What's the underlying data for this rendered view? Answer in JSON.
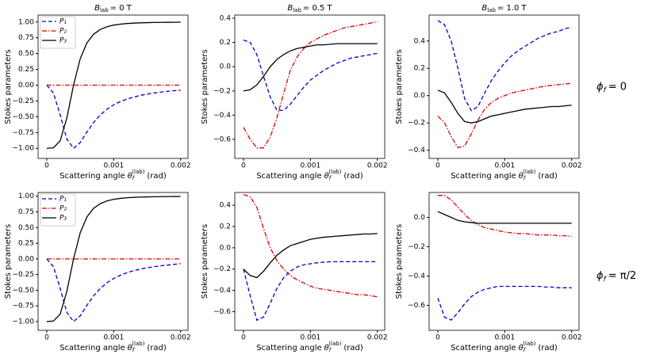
{
  "chart_data": [
    {
      "type": "line",
      "title": {
        "symbol": "B",
        "subscript": "lab",
        "text": "= 0 T"
      },
      "ylabel": "Stokes parameters",
      "xlabel": {
        "text": "Scattering angle",
        "symbol": "θ",
        "sub": "f",
        "sup": "(lab)",
        "unit": "(rad)"
      },
      "x": [
        0,
        0.0001,
        0.0002,
        0.0003,
        0.0004,
        0.0005,
        0.0006,
        0.0007,
        0.0008,
        0.0009,
        0.001,
        0.0011,
        0.0012,
        0.0013,
        0.0014,
        0.0015,
        0.0016,
        0.0017,
        0.0018,
        0.0019,
        0.002
      ],
      "xlim": [
        -0.00013,
        0.00211
      ],
      "xticks": [
        0,
        0.001,
        0.002
      ],
      "ylim": [
        -1.16,
        1.11
      ],
      "yticks": [
        {
          "value": -1,
          "label": "−1.00"
        },
        {
          "value": -0.75,
          "label": "−0.75"
        },
        {
          "value": -0.5,
          "label": "−0.50"
        },
        {
          "value": -0.25,
          "label": "−0.25"
        },
        {
          "value": 0,
          "label": "0.00"
        },
        {
          "value": 0.25,
          "label": "0.25"
        },
        {
          "value": 0.5,
          "label": "0.50"
        },
        {
          "value": 0.75,
          "label": "0.75"
        },
        {
          "value": 1,
          "label": "1.00"
        }
      ],
      "legend": "upper left",
      "series": [
        {
          "name": "P₁",
          "color": "#0000cc",
          "style": "dashed",
          "values": [
            0,
            -0.125,
            -0.471,
            -0.855,
            -1,
            -0.908,
            -0.742,
            -0.59,
            -0.471,
            -0.38,
            -0.312,
            -0.26,
            -0.22,
            -0.188,
            -0.162,
            -0.142,
            -0.125,
            -0.11,
            -0.099,
            -0.088,
            -0.08
          ]
        },
        {
          "name": "P₂",
          "color": "#dd0000",
          "style": "dashdot",
          "values": [
            0,
            0,
            0,
            0,
            0,
            0,
            0,
            0,
            0,
            0,
            0,
            0,
            0,
            0,
            0,
            0,
            0,
            0,
            0,
            0,
            0
          ]
        },
        {
          "name": "P₃",
          "color": "#000000",
          "style": "solid",
          "values": [
            -1,
            -0.992,
            -0.882,
            -0.519,
            0,
            0.419,
            0.67,
            0.807,
            0.882,
            0.925,
            0.951,
            0.966,
            0.976,
            0.982,
            0.987,
            0.99,
            0.992,
            0.994,
            0.995,
            0.996,
            0.997
          ]
        }
      ]
    },
    {
      "type": "line",
      "title": {
        "symbol": "B",
        "subscript": "lab",
        "text": "= 0.5 T"
      },
      "ylabel": "Stokes parameters",
      "xlabel": {
        "text": "Scattering angle",
        "symbol": "θ",
        "sub": "f",
        "sup": "(lab)",
        "unit": "(rad)"
      },
      "x": [
        0,
        0.0001,
        0.0002,
        0.0003,
        0.0004,
        0.0005,
        0.0006,
        0.0007,
        0.0008,
        0.0009,
        0.001,
        0.0011,
        0.0012,
        0.0013,
        0.0014,
        0.0015,
        0.0016,
        0.0017,
        0.0018,
        0.0019,
        0.002
      ],
      "xlim": [
        -0.00013,
        0.00211
      ],
      "xticks": [
        0,
        0.001,
        0.002
      ],
      "ylim": [
        -0.757,
        0.426
      ],
      "yticks": [
        {
          "value": -0.6,
          "label": "−0.6"
        },
        {
          "value": -0.4,
          "label": "−0.4"
        },
        {
          "value": -0.2,
          "label": "−0.2"
        },
        {
          "value": 0,
          "label": "0.0"
        },
        0.2,
        0.4
      ],
      "series": [
        {
          "name": "P₁",
          "color": "#0000cc",
          "style": "dashed",
          "values": [
            0.22,
            0.2,
            0.1,
            -0.08,
            -0.25,
            -0.36,
            -0.36,
            -0.31,
            -0.24,
            -0.17,
            -0.11,
            -0.07,
            -0.03,
            0,
            0.03,
            0.05,
            0.07,
            0.08,
            0.09,
            0.1,
            0.11
          ]
        },
        {
          "name": "P₂",
          "color": "#dd0000",
          "style": "dashdot",
          "values": [
            -0.5,
            -0.6,
            -0.67,
            -0.67,
            -0.58,
            -0.42,
            -0.22,
            -0.03,
            0.08,
            0.15,
            0.2,
            0.23,
            0.26,
            0.28,
            0.3,
            0.32,
            0.33,
            0.34,
            0.35,
            0.36,
            0.37
          ]
        },
        {
          "name": "P₃",
          "color": "#000000",
          "style": "solid",
          "values": [
            -0.2,
            -0.19,
            -0.15,
            -0.08,
            0,
            0.06,
            0.1,
            0.13,
            0.15,
            0.16,
            0.17,
            0.18,
            0.18,
            0.185,
            0.19,
            0.19,
            0.19,
            0.19,
            0.19,
            0.19,
            0.19
          ]
        }
      ]
    },
    {
      "type": "line",
      "title": {
        "symbol": "B",
        "subscript": "lab",
        "text": "= 1.0 T"
      },
      "row_label": {
        "symbol": "ϕ",
        "subscript": "f",
        "text": "= 0"
      },
      "ylabel": "Stokes parameters",
      "xlabel": {
        "text": "Scattering angle",
        "symbol": "θ",
        "sub": "f",
        "sup": "(lab)",
        "unit": "(rad)"
      },
      "x": [
        0,
        0.0001,
        0.0002,
        0.0003,
        0.0004,
        0.0005,
        0.0006,
        0.0007,
        0.0008,
        0.0009,
        0.001,
        0.0011,
        0.0012,
        0.0013,
        0.0014,
        0.0015,
        0.0016,
        0.0017,
        0.0018,
        0.0019,
        0.002
      ],
      "xlim": [
        -0.00013,
        0.00211
      ],
      "xticks": [
        0,
        0.001,
        0.002
      ],
      "ylim": [
        -0.46,
        0.59
      ],
      "yticks": [
        {
          "value": -0.4,
          "label": "−0.4"
        },
        {
          "value": -0.2,
          "label": "−0.2"
        },
        {
          "value": 0,
          "label": "0.0"
        },
        0.2,
        0.4
      ],
      "series": [
        {
          "name": "P₁",
          "color": "#0000cc",
          "style": "dashed",
          "values": [
            0.55,
            0.52,
            0.4,
            0.2,
            -0.02,
            -0.11,
            -0.08,
            0.02,
            0.11,
            0.18,
            0.24,
            0.29,
            0.33,
            0.36,
            0.39,
            0.42,
            0.44,
            0.46,
            0.47,
            0.49,
            0.5
          ]
        },
        {
          "name": "P₂",
          "color": "#dd0000",
          "style": "dashdot",
          "values": [
            -0.15,
            -0.2,
            -0.3,
            -0.38,
            -0.37,
            -0.28,
            -0.18,
            -0.1,
            -0.05,
            -0.02,
            0,
            0.02,
            0.03,
            0.04,
            0.05,
            0.06,
            0.07,
            0.075,
            0.08,
            0.085,
            0.09
          ]
        },
        {
          "name": "P₃",
          "color": "#000000",
          "style": "solid",
          "values": [
            0.04,
            0.02,
            -0.05,
            -0.13,
            -0.19,
            -0.2,
            -0.19,
            -0.17,
            -0.15,
            -0.14,
            -0.13,
            -0.12,
            -0.11,
            -0.1,
            -0.095,
            -0.09,
            -0.085,
            -0.08,
            -0.08,
            -0.075,
            -0.07
          ]
        }
      ]
    },
    {
      "type": "line",
      "ylabel": "Stokes parameters",
      "xlabel": {
        "text": "Scattering angle",
        "symbol": "θ",
        "sub": "f",
        "sup": "(lab)",
        "unit": "(rad)"
      },
      "x": [
        0,
        0.0001,
        0.0002,
        0.0003,
        0.0004,
        0.0005,
        0.0006,
        0.0007,
        0.0008,
        0.0009,
        0.001,
        0.0011,
        0.0012,
        0.0013,
        0.0014,
        0.0015,
        0.0016,
        0.0017,
        0.0018,
        0.0019,
        0.002
      ],
      "xlim": [
        -0.00013,
        0.00211
      ],
      "xticks": [
        0,
        0.001,
        0.002
      ],
      "ylim": [
        -1.14,
        1.06
      ],
      "yticks": [
        {
          "value": -1,
          "label": "−1.00"
        },
        {
          "value": -0.75,
          "label": "−0.75"
        },
        {
          "value": -0.5,
          "label": "−0.50"
        },
        {
          "value": -0.25,
          "label": "−0.25"
        },
        {
          "value": 0,
          "label": "0.00"
        },
        {
          "value": 0.25,
          "label": "0.25"
        },
        {
          "value": 0.5,
          "label": "0.50"
        },
        {
          "value": 0.75,
          "label": "0.75"
        },
        {
          "value": 1,
          "label": "1.00"
        }
      ],
      "legend": "upper left",
      "series": [
        {
          "name": "P₁",
          "color": "#0000cc",
          "style": "dashed",
          "values": [
            0,
            -0.125,
            -0.471,
            -0.855,
            -1,
            -0.908,
            -0.742,
            -0.59,
            -0.471,
            -0.38,
            -0.312,
            -0.26,
            -0.22,
            -0.188,
            -0.162,
            -0.142,
            -0.125,
            -0.11,
            -0.099,
            -0.088,
            -0.075
          ]
        },
        {
          "name": "P₂",
          "color": "#dd0000",
          "style": "dashdot",
          "values": [
            0,
            0,
            0,
            0,
            0,
            0,
            0,
            0,
            0,
            0,
            0,
            0,
            0,
            0,
            0,
            0,
            0,
            0,
            0,
            0,
            0
          ]
        },
        {
          "name": "P₃",
          "color": "#000000",
          "style": "solid",
          "values": [
            -1,
            -0.992,
            -0.882,
            -0.519,
            0,
            0.419,
            0.67,
            0.807,
            0.882,
            0.925,
            0.951,
            0.966,
            0.976,
            0.982,
            0.987,
            0.99,
            0.992,
            0.994,
            0.995,
            0.996,
            0.997
          ]
        }
      ]
    },
    {
      "type": "line",
      "ylabel": "Stokes parameters",
      "xlabel": {
        "text": "Scattering angle",
        "symbol": "θ",
        "sub": "f",
        "sup": "(lab)",
        "unit": "(rad)"
      },
      "x": [
        0,
        0.0001,
        0.0002,
        0.0003,
        0.0004,
        0.0005,
        0.0006,
        0.0007,
        0.0008,
        0.0009,
        0.001,
        0.0011,
        0.0012,
        0.0013,
        0.0014,
        0.0015,
        0.0016,
        0.0017,
        0.0018,
        0.0019,
        0.002
      ],
      "xlim": [
        -0.00013,
        0.00211
      ],
      "xticks": [
        0,
        0.001,
        0.002
      ],
      "ylim": [
        -0.775,
        0.52
      ],
      "yticks": [
        {
          "value": -0.6,
          "label": "−0.6"
        },
        {
          "value": -0.4,
          "label": "−0.4"
        },
        {
          "value": -0.2,
          "label": "−0.2"
        },
        {
          "value": 0,
          "label": "0.0"
        },
        0.2,
        0.4
      ],
      "series": [
        {
          "name": "P₁",
          "color": "#0000cc",
          "style": "dashed",
          "values": [
            -0.2,
            -0.45,
            -0.68,
            -0.65,
            -0.52,
            -0.38,
            -0.28,
            -0.22,
            -0.18,
            -0.16,
            -0.15,
            -0.14,
            -0.135,
            -0.13,
            -0.13,
            -0.13,
            -0.13,
            -0.13,
            -0.13,
            -0.13,
            -0.13
          ]
        },
        {
          "name": "P₂",
          "color": "#dd0000",
          "style": "dashdot",
          "values": [
            0.5,
            0.48,
            0.38,
            0.18,
            0,
            -0.12,
            -0.2,
            -0.26,
            -0.3,
            -0.33,
            -0.36,
            -0.38,
            -0.39,
            -0.4,
            -0.41,
            -0.42,
            -0.43,
            -0.44,
            -0.44,
            -0.45,
            -0.46
          ]
        },
        {
          "name": "P₃",
          "color": "#000000",
          "style": "solid",
          "values": [
            -0.2,
            -0.26,
            -0.28,
            -0.22,
            -0.14,
            -0.07,
            -0.02,
            0.02,
            0.04,
            0.06,
            0.08,
            0.09,
            0.1,
            0.105,
            0.11,
            0.115,
            0.12,
            0.125,
            0.13,
            0.13,
            0.135
          ]
        }
      ]
    },
    {
      "type": "line",
      "row_label": {
        "symbol": "ϕ",
        "subscript": "f",
        "text": "= π/2"
      },
      "ylabel": "Stokes parameters",
      "xlabel": {
        "text": "Scattering angle",
        "symbol": "θ",
        "sub": "f",
        "sup": "(lab)",
        "unit": "(rad)"
      },
      "x": [
        0,
        0.0001,
        0.0002,
        0.0003,
        0.0004,
        0.0005,
        0.0006,
        0.0007,
        0.0008,
        0.0009,
        0.001,
        0.0011,
        0.0012,
        0.0013,
        0.0014,
        0.0015,
        0.0016,
        0.0017,
        0.0018,
        0.0019,
        0.002
      ],
      "xlim": [
        -0.00013,
        0.00211
      ],
      "xticks": [
        0,
        0.001,
        0.002
      ],
      "ylim": [
        -0.77,
        0.17
      ],
      "yticks": [
        {
          "value": -0.6,
          "label": "−0.6"
        },
        {
          "value": -0.4,
          "label": "−0.4"
        },
        {
          "value": -0.2,
          "label": "−0.2"
        },
        {
          "value": 0,
          "label": "0.0"
        }
      ],
      "series": [
        {
          "name": "P₁",
          "color": "#0000cc",
          "style": "dashed",
          "values": [
            -0.55,
            -0.68,
            -0.7,
            -0.65,
            -0.59,
            -0.54,
            -0.51,
            -0.49,
            -0.48,
            -0.47,
            -0.47,
            -0.47,
            -0.47,
            -0.47,
            -0.47,
            -0.47,
            -0.475,
            -0.475,
            -0.48,
            -0.48,
            -0.48
          ]
        },
        {
          "name": "P₂",
          "color": "#dd0000",
          "style": "dashdot",
          "values": [
            0.15,
            0.15,
            0.12,
            0.07,
            0.02,
            -0.02,
            -0.05,
            -0.07,
            -0.08,
            -0.09,
            -0.1,
            -0.105,
            -0.11,
            -0.11,
            -0.115,
            -0.12,
            -0.12,
            -0.12,
            -0.125,
            -0.125,
            -0.13
          ]
        },
        {
          "name": "P₃",
          "color": "#000000",
          "style": "solid",
          "values": [
            0.04,
            0.02,
            0,
            -0.02,
            -0.03,
            -0.035,
            -0.04,
            -0.04,
            -0.04,
            -0.04,
            -0.04,
            -0.04,
            -0.04,
            -0.04,
            -0.04,
            -0.04,
            -0.04,
            -0.04,
            -0.04,
            -0.04,
            -0.04
          ]
        }
      ]
    }
  ]
}
